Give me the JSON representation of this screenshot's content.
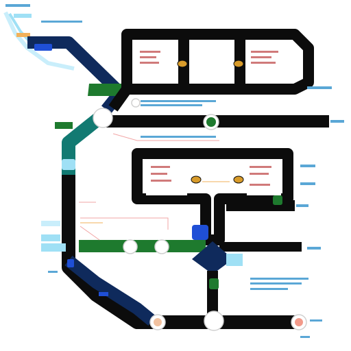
{
  "diagram": {
    "title_glyph_text": "",
    "palette": {
      "track": "#0c0c0c",
      "navy": "#0f2a5c",
      "teal": "#127a72",
      "green": "#1e7a2e",
      "light_blue": "#9fe0f5",
      "pale_blue": "#c9eefb",
      "pink_line": "#f2a6a6",
      "orange_line": "#f2b15a",
      "node_ring": "#ffffff",
      "accent_blue": "#1f4fd6"
    },
    "icons": [
      "station-node-icon",
      "signal-icon",
      "badge-icon",
      "keycard-icon",
      "chip-icon",
      "pin-icon"
    ]
  }
}
